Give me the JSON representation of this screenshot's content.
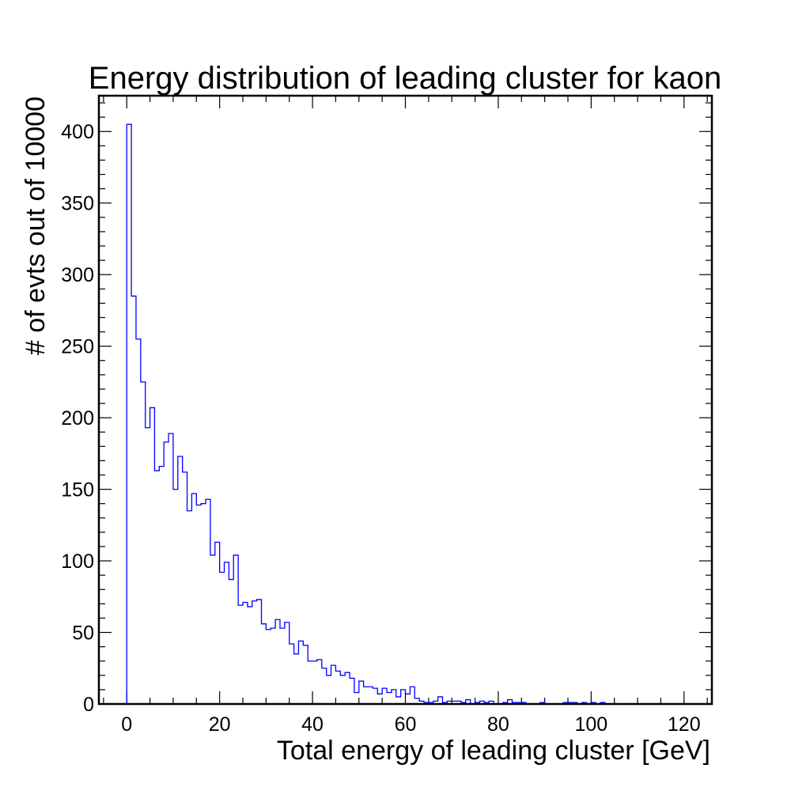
{
  "chart_data": {
    "type": "histogram",
    "title": "Energy distribution of leading cluster for kaon",
    "xlabel": "Total energy of leading cluster [GeV]",
    "ylabel": "# of evts out of 10000",
    "xlim": [
      -6,
      126
    ],
    "ylim": [
      0,
      425
    ],
    "xticks": [
      0,
      20,
      40,
      60,
      80,
      100,
      120
    ],
    "yticks": [
      0,
      50,
      100,
      150,
      200,
      250,
      300,
      350,
      400
    ],
    "grid": false,
    "line_color": "#0000ff",
    "bin_start": 0,
    "bin_width": 1,
    "counts": [
      405,
      285,
      255,
      225,
      193,
      207,
      163,
      166,
      183,
      189,
      150,
      173,
      162,
      135,
      147,
      139,
      140,
      143,
      104,
      113,
      92,
      99,
      87,
      104,
      69,
      71,
      68,
      72,
      73,
      56,
      52,
      53,
      59,
      53,
      57,
      42,
      35,
      44,
      41,
      30,
      30,
      31,
      25,
      20,
      27,
      23,
      20,
      22,
      18,
      8,
      16,
      12,
      12,
      11,
      7,
      11,
      8,
      10,
      5,
      10,
      7,
      12,
      4,
      2,
      1,
      1,
      2,
      5,
      1,
      2,
      2,
      2,
      1,
      3,
      0,
      1,
      2,
      1,
      2,
      0,
      0,
      1,
      3,
      1,
      1,
      1,
      0,
      0,
      0,
      1,
      0,
      0,
      0,
      0,
      1,
      1,
      1,
      0,
      1,
      0,
      1,
      0,
      1,
      0,
      0,
      0,
      0,
      0,
      0,
      0,
      0,
      0,
      0,
      0,
      0,
      0,
      0,
      0,
      0,
      0
    ]
  }
}
